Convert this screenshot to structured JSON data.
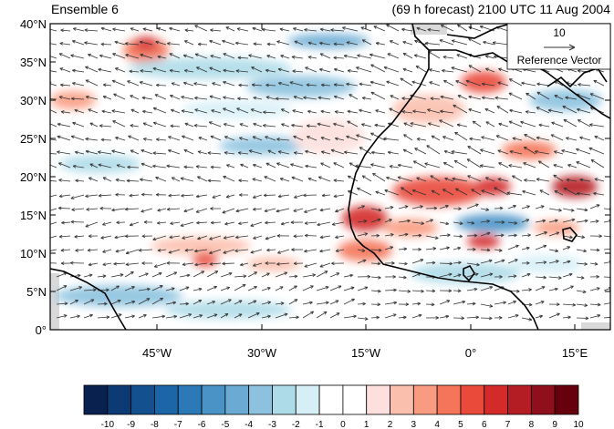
{
  "title_left": "Ensemble 6",
  "title_right": "(69 h forecast) 2100 UTC 11 Aug 2004",
  "y_ticks": [
    "40°N",
    "35°N",
    "30°N",
    "25°N",
    "20°N",
    "15°N",
    "10°N",
    "5°N",
    "0°"
  ],
  "x_ticks": [
    "45°W",
    "30°W",
    "15°W",
    "0°",
    "15°E"
  ],
  "reference_vector": {
    "value": "10",
    "label": "Reference Vector"
  },
  "colorbar": {
    "labels": [
      "-10",
      "-9",
      "-8",
      "-7",
      "-6",
      "-5",
      "-4",
      "-3",
      "-2",
      "-1",
      "0",
      "1",
      "2",
      "3",
      "4",
      "5",
      "6",
      "7",
      "8",
      "9",
      "10"
    ],
    "colors": [
      "#08214f",
      "#0b3a75",
      "#13508f",
      "#1c65a7",
      "#2c79b8",
      "#4a93c6",
      "#6aaad3",
      "#8cc2df",
      "#aedbe8",
      "#d6eff7",
      "#ffffff",
      "#ffffff",
      "#fde0dd",
      "#fbbfae",
      "#f99b80",
      "#f47559",
      "#e94a3a",
      "#d42a2a",
      "#b51d24",
      "#8f0f1d",
      "#67000d"
    ]
  },
  "map": {
    "lon_range": [
      -60,
      20
    ],
    "lat_range": [
      0,
      40
    ],
    "palette": {
      "land": "#d9d9d9",
      "coast": "#000000",
      "arrow": "#333333"
    }
  }
}
